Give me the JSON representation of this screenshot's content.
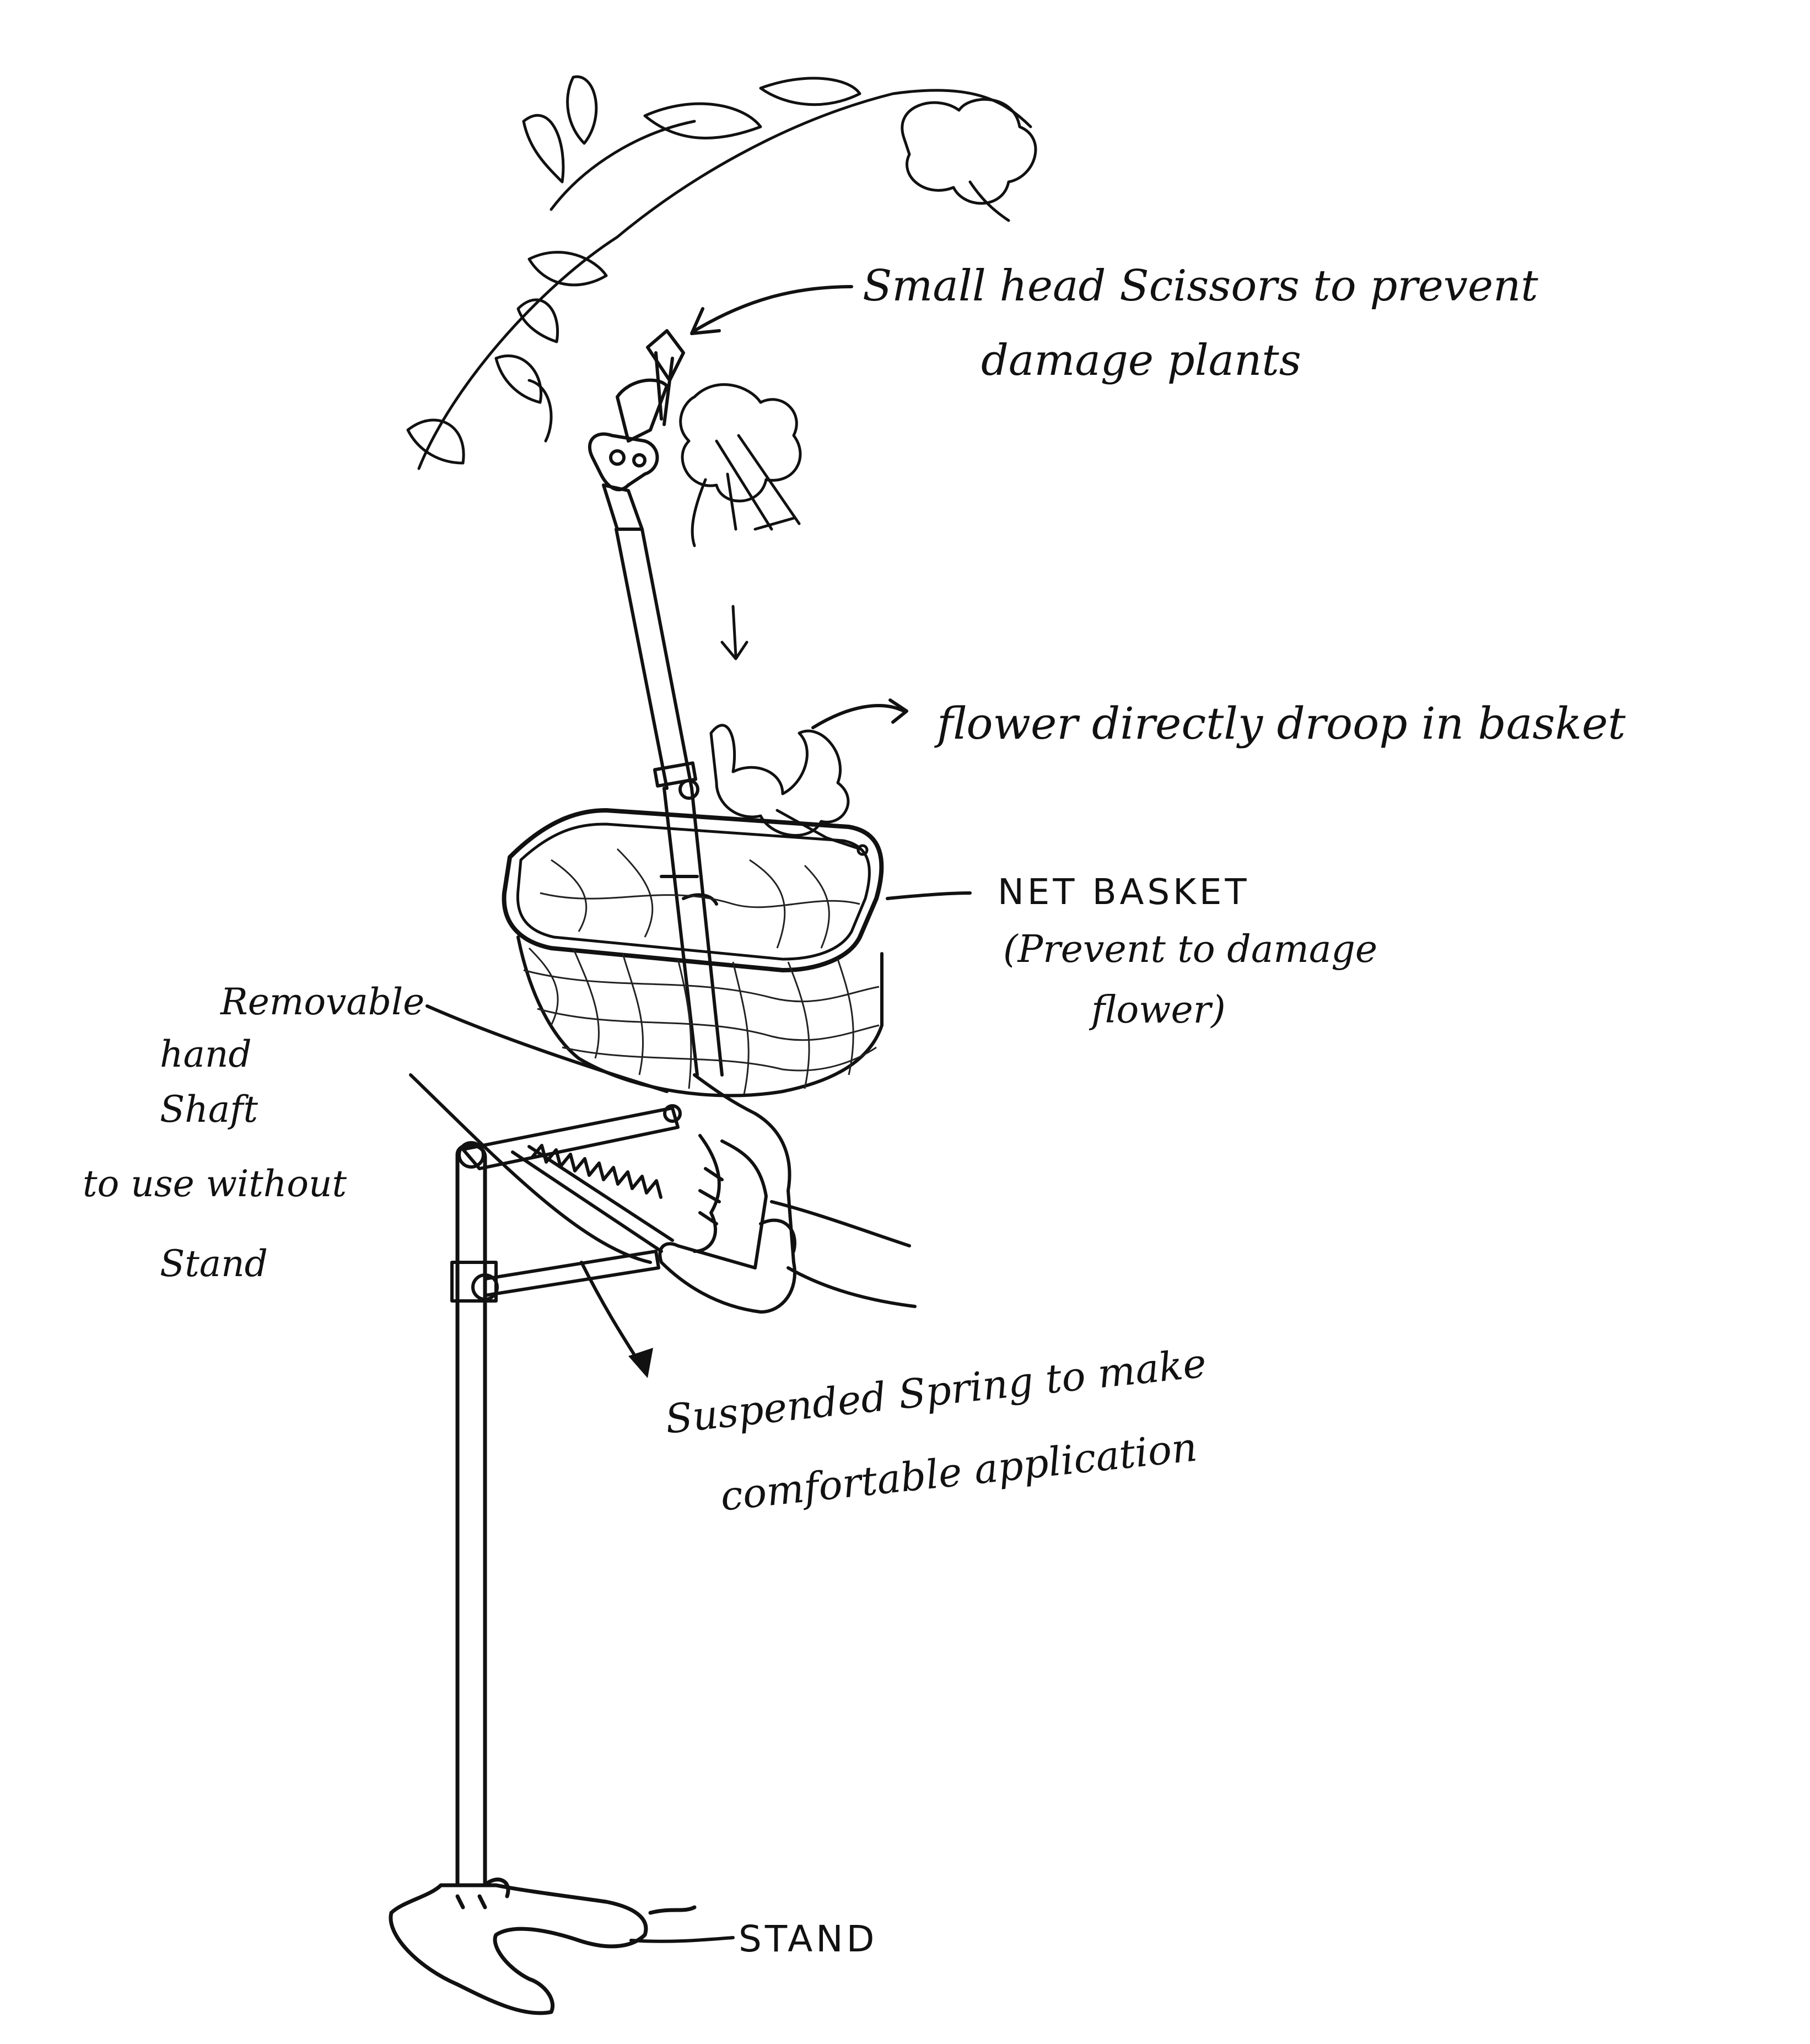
{
  "annotations": {
    "scissors_line1": "Small head Scissors to prevent",
    "scissors_line2": "damage plants",
    "flower_drop": "flower directly droop in basket",
    "net_basket_title": "NET BASKET",
    "net_basket_line2": "(Prevent to damage",
    "net_basket_line3": "flower)",
    "shaft_line1": "Removable",
    "shaft_line2": "hand",
    "shaft_line3": "Shaft",
    "shaft_line4": "to use without",
    "shaft_line5": "Stand",
    "spring_line1": "Suspended Spring to make",
    "spring_line2": "comfortable application",
    "stand": "STAND"
  },
  "colors": {
    "ink": "#111111",
    "paper": "#ffffff"
  }
}
